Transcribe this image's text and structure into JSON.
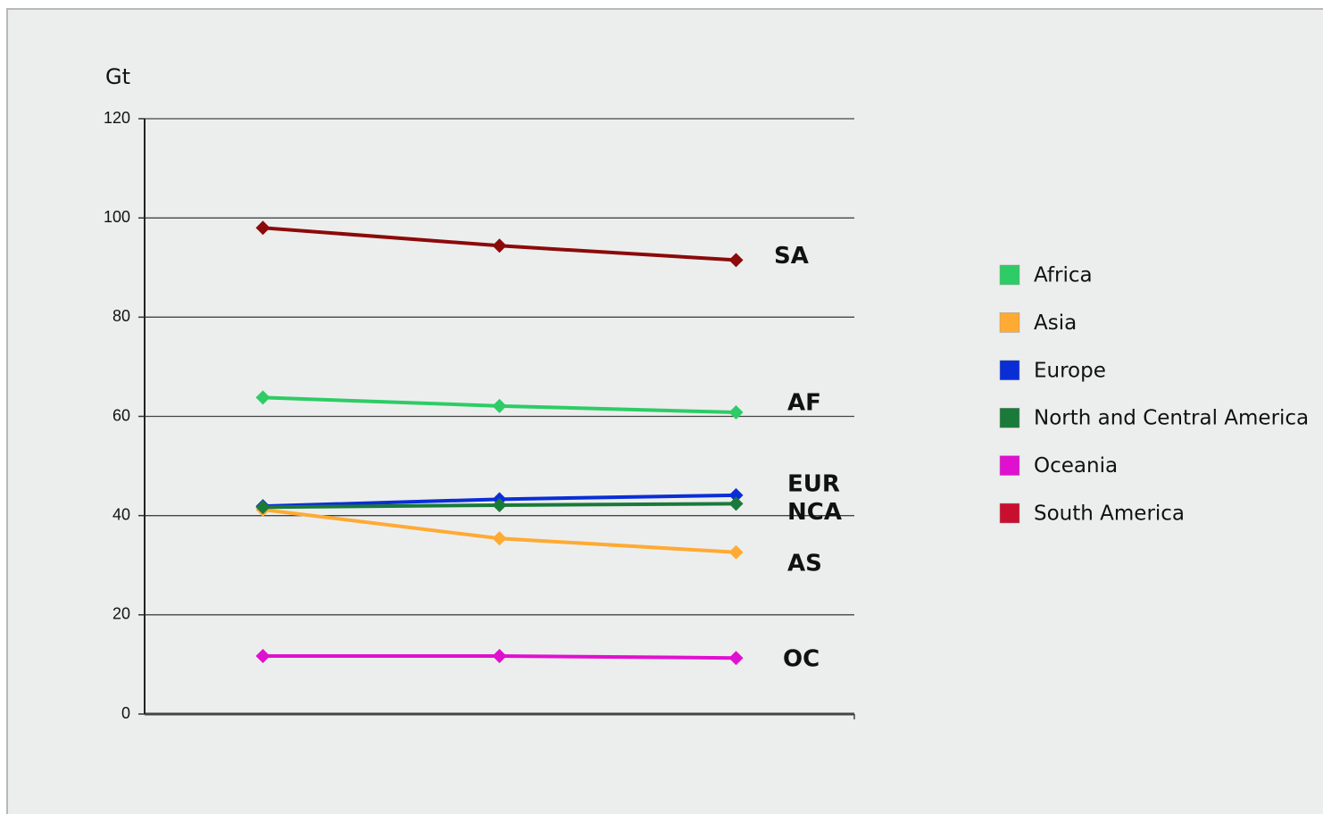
{
  "chart_data": {
    "type": "line",
    "y_axis_label": "Gt",
    "categories": [
      null,
      null,
      null
    ],
    "ylim": [
      0,
      120
    ],
    "yticks": [
      0,
      20,
      40,
      60,
      80,
      100,
      120
    ],
    "grid": true,
    "legend": "right",
    "series": [
      {
        "name": "Africa",
        "color": "#2dcc66",
        "label": "AF",
        "values": [
          63.8,
          62.1,
          60.8
        ]
      },
      {
        "name": "Asia",
        "color": "#ffaa33",
        "label": "AS",
        "values": [
          41.2,
          35.4,
          32.6
        ]
      },
      {
        "name": "Europe",
        "color": "#0a2ed6",
        "label": "EUR",
        "values": [
          41.9,
          43.3,
          44.1
        ]
      },
      {
        "name": "North and Central America",
        "color": "#1a7a3a",
        "label": "NCA",
        "values": [
          41.7,
          42.1,
          42.4
        ]
      },
      {
        "name": "Oceania",
        "color": "#e010d0",
        "label": "OC",
        "values": [
          11.7,
          11.7,
          11.3
        ]
      },
      {
        "name": "South America",
        "color": "#8b0a0a",
        "legend_color": "#c8102e",
        "label": "SA",
        "values": [
          98.0,
          94.4,
          91.5
        ]
      }
    ]
  }
}
